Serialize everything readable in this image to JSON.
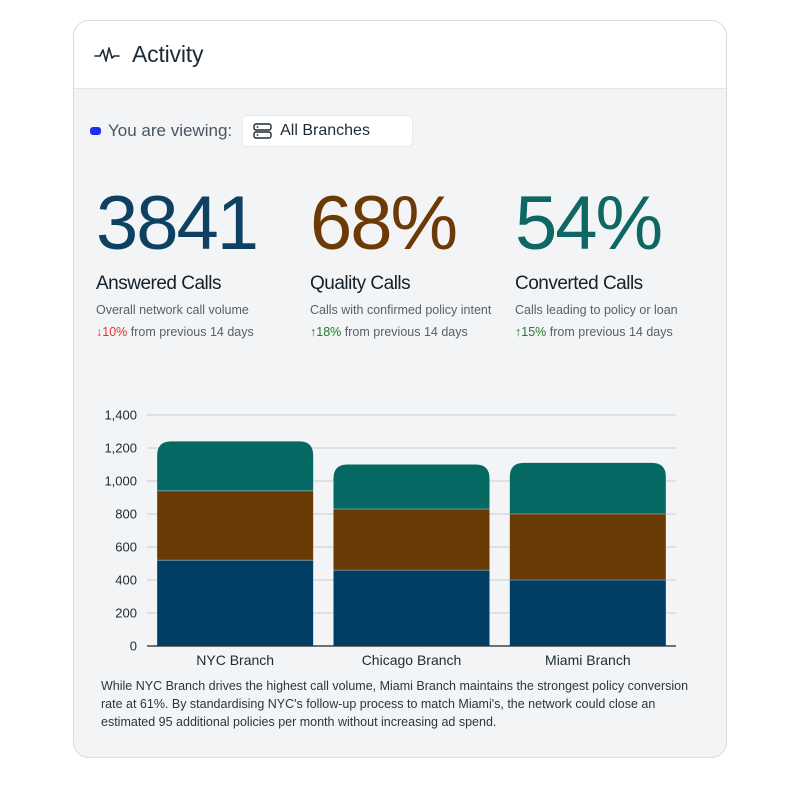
{
  "header": {
    "title": "Activity",
    "icon": "pulse-icon"
  },
  "viewing": {
    "label": "You are viewing:",
    "branch": "All Branches",
    "dot_color": "#1f2ef0"
  },
  "metrics": [
    {
      "value": "3841",
      "title": "Answered Calls",
      "subtitle": "Overall network call volume",
      "trend_dir": "down",
      "trend_arrow": "↓",
      "trend_value": "10%",
      "trend_text": "from previous 14 days",
      "color": "#0e4062"
    },
    {
      "value": "68%",
      "title": "Quality Calls",
      "subtitle": "Calls with confirmed policy intent",
      "trend_dir": "up",
      "trend_arrow": "↑",
      "trend_value": "18%",
      "trend_text": "from previous 14 days",
      "color": "#6b3a06"
    },
    {
      "value": "54%",
      "title": "Converted Calls",
      "subtitle": "Calls leading to policy or loan",
      "trend_dir": "up",
      "trend_arrow": "↑",
      "trend_value": "15%",
      "trend_text": "from previous 14 days",
      "color": "#0e6762"
    }
  ],
  "chart_data": {
    "type": "bar",
    "stacked": true,
    "categories": [
      "NYC Branch",
      "Chicago Branch",
      "Miami Branch"
    ],
    "series": [
      {
        "values": [
          520,
          460,
          400
        ],
        "color": "#003f63"
      },
      {
        "values": [
          420,
          370,
          400
        ],
        "color": "#683b04"
      },
      {
        "values": [
          300,
          270,
          310
        ],
        "color": "#066862"
      }
    ],
    "ylim": [
      0,
      1400
    ],
    "yticks": [
      "0",
      "200",
      "400",
      "600",
      "800",
      "1,000",
      "1,200",
      "1,400"
    ],
    "ytick_values": [
      0,
      200,
      400,
      600,
      800,
      1000,
      1200,
      1400
    ],
    "grid": true,
    "legend": "none"
  },
  "insight": "While NYC Branch drives the highest call volume, Miami Branch maintains the strongest policy conversion rate at 61%. By standardising NYC's follow-up process to match Miami's, the network could close an estimated 95 additional policies per month without increasing ad spend."
}
